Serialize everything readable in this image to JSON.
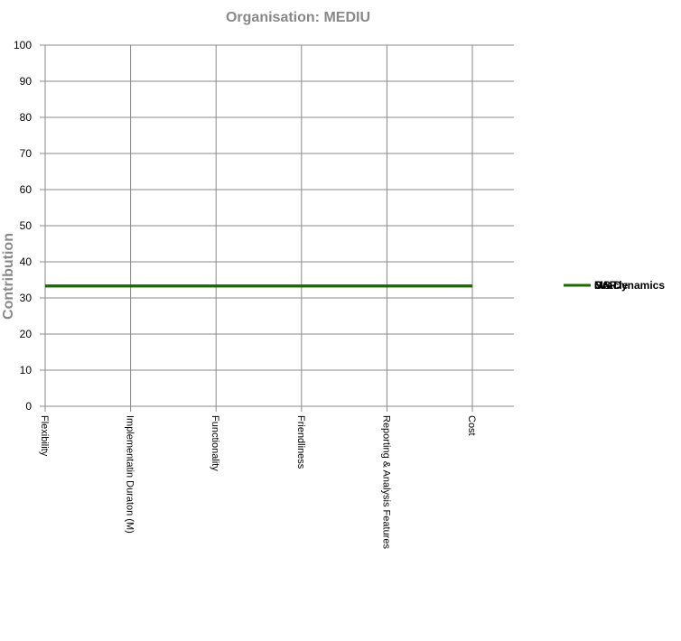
{
  "chart_data": {
    "type": "line",
    "title": "Organisation: MEDIU",
    "xlabel": "",
    "ylabel": "Contribution",
    "categories": [
      "Flexibility",
      "Implementatin Duraton (M)",
      "Functionality",
      "Friendliness",
      "Reporting & Analysis Features",
      "Cost"
    ],
    "ylim": [
      0,
      100
    ],
    "yticks": [
      0,
      10,
      20,
      30,
      40,
      50,
      60,
      70,
      80,
      90,
      100
    ],
    "grid": true,
    "legend_position": "right",
    "series": [
      {
        "name": "SAP",
        "color": "#1a6b00",
        "values": [
          33.3,
          33.3,
          33.3,
          33.3,
          33.3,
          33.3
        ]
      },
      {
        "name": "MS Dynamics",
        "color": "#1a6b00",
        "values": [
          33.3,
          33.3,
          33.3,
          33.3,
          33.3,
          33.3
        ]
      },
      {
        "name": "Oracle",
        "color": "#1a6b00",
        "values": [
          33.3,
          33.3,
          33.3,
          33.3,
          33.3,
          33.3
        ]
      }
    ]
  }
}
